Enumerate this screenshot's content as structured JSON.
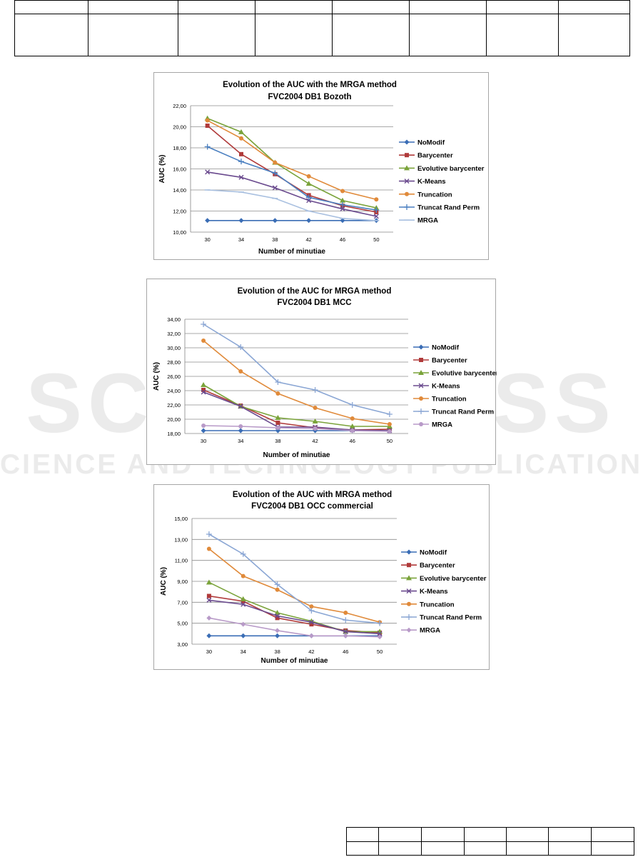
{
  "watermark": {
    "big": "SCITEPRESS",
    "small": "SCIENCE AND TECHNOLOGY PUBLICATIONS"
  },
  "chart_data": [
    {
      "type": "line",
      "title": "Evolution of the AUC with the MRGA method",
      "subtitle": "FVC2004 DB1 Bozoth",
      "xlabel": "Number of minutiae",
      "ylabel": "AUC (%)",
      "categories": [
        "30",
        "34",
        "38",
        "42",
        "46",
        "50"
      ],
      "yticks": [
        "10,00",
        "12,00",
        "14,00",
        "16,00",
        "18,00",
        "20,00",
        "22,00"
      ],
      "ylim": [
        10,
        22
      ],
      "grid": true,
      "legend": "right",
      "series": [
        {
          "name": "NoModif",
          "color": "#3a6db5",
          "marker": "diamond",
          "values": [
            11.1,
            11.1,
            11.1,
            11.1,
            11.1,
            11.1
          ]
        },
        {
          "name": "Barycenter",
          "color": "#b03a3a",
          "marker": "square",
          "values": [
            20.1,
            17.4,
            15.5,
            13.5,
            12.5,
            11.9
          ]
        },
        {
          "name": "Evolutive barycenter",
          "color": "#7aa33a",
          "marker": "triangle",
          "values": [
            20.8,
            19.5,
            16.6,
            14.6,
            13.0,
            12.3
          ]
        },
        {
          "name": "K-Means",
          "color": "#6a4a8e",
          "marker": "x",
          "values": [
            15.7,
            15.2,
            14.2,
            13.0,
            12.2,
            11.5
          ]
        },
        {
          "name": "Truncation",
          "color": "#e08a3a",
          "marker": "circle",
          "values": [
            20.6,
            18.9,
            16.6,
            15.3,
            13.9,
            13.1
          ]
        },
        {
          "name": "Truncat Rand Perm",
          "color": "#4a7fc0",
          "marker": "plus",
          "values": [
            18.1,
            16.7,
            15.6,
            13.3,
            12.6,
            12.1
          ]
        },
        {
          "name": "MRGA",
          "color": "#a9c0e0",
          "marker": "dash",
          "values": [
            14.0,
            13.8,
            13.2,
            12.0,
            11.3,
            11.1
          ]
        }
      ]
    },
    {
      "type": "line",
      "title": "Evolution of the AUC  for MRGA method",
      "subtitle": "FVC2004 DB1 MCC",
      "xlabel": "Number of minutiae",
      "ylabel": "AUC (%)",
      "categories": [
        "30",
        "34",
        "38",
        "42",
        "46",
        "50"
      ],
      "yticks": [
        "18,00",
        "20,00",
        "22,00",
        "24,00",
        "26,00",
        "28,00",
        "30,00",
        "32,00",
        "34,00"
      ],
      "ylim": [
        18,
        34
      ],
      "grid": true,
      "legend": "right",
      "series": [
        {
          "name": "NoModif",
          "color": "#3a6db5",
          "marker": "diamond",
          "values": [
            18.4,
            18.4,
            18.4,
            18.4,
            18.4,
            18.4
          ]
        },
        {
          "name": "Barycenter",
          "color": "#b03a3a",
          "marker": "square",
          "values": [
            24.1,
            21.9,
            19.5,
            18.8,
            18.5,
            18.6
          ]
        },
        {
          "name": "Evolutive barycenter",
          "color": "#7aa33a",
          "marker": "triangle",
          "values": [
            24.8,
            21.8,
            20.2,
            19.7,
            19.0,
            19.0
          ]
        },
        {
          "name": "K-Means",
          "color": "#6a4a8e",
          "marker": "x",
          "values": [
            23.8,
            21.8,
            18.9,
            18.9,
            18.5,
            18.4
          ]
        },
        {
          "name": "Truncation",
          "color": "#e08a3a",
          "marker": "circle",
          "values": [
            31.0,
            26.7,
            23.6,
            21.6,
            20.1,
            19.3
          ]
        },
        {
          "name": "Truncat Rand Perm",
          "color": "#8aa6d4",
          "marker": "plus",
          "values": [
            33.3,
            30.1,
            25.2,
            24.1,
            22.0,
            20.7
          ]
        },
        {
          "name": "MRGA",
          "color": "#b89ac8",
          "marker": "circle",
          "values": [
            19.1,
            19.0,
            18.8,
            18.7,
            18.4,
            18.3
          ]
        }
      ]
    },
    {
      "type": "line",
      "title": "Evolution of the AUC  with MRGA method",
      "subtitle": "FVC2004 DB1 OCC commercial",
      "xlabel": "Number of minutiae",
      "ylabel": "AUC (%)",
      "categories": [
        "30",
        "34",
        "38",
        "42",
        "46",
        "50"
      ],
      "yticks": [
        "3,00",
        "5,00",
        "7,00",
        "9,00",
        "11,00",
        "13,00",
        "15,00"
      ],
      "ylim": [
        3,
        15
      ],
      "grid": true,
      "legend": "right",
      "series": [
        {
          "name": "NoModif",
          "color": "#3a6db5",
          "marker": "diamond",
          "values": [
            3.8,
            3.8,
            3.8,
            3.8,
            3.8,
            3.8
          ]
        },
        {
          "name": "Barycenter",
          "color": "#b03a3a",
          "marker": "square",
          "values": [
            7.6,
            7.1,
            5.5,
            4.9,
            4.3,
            4.1
          ]
        },
        {
          "name": "Evolutive barycenter",
          "color": "#7aa33a",
          "marker": "triangle",
          "values": [
            8.9,
            7.3,
            6.0,
            5.2,
            4.2,
            4.2
          ]
        },
        {
          "name": "K-Means",
          "color": "#6a4a8e",
          "marker": "x",
          "values": [
            7.2,
            6.8,
            5.7,
            5.1,
            4.2,
            4.0
          ]
        },
        {
          "name": "Truncation",
          "color": "#e08a3a",
          "marker": "circle",
          "values": [
            12.1,
            9.5,
            8.2,
            6.6,
            6.0,
            5.1
          ]
        },
        {
          "name": "Truncat Rand Perm",
          "color": "#8aa6d4",
          "marker": "plus",
          "values": [
            13.5,
            11.6,
            8.7,
            6.2,
            5.3,
            5.0
          ]
        },
        {
          "name": "MRGA",
          "color": "#b89ac8",
          "marker": "diamond",
          "values": [
            5.5,
            4.9,
            4.3,
            3.8,
            3.8,
            3.7
          ]
        }
      ]
    }
  ]
}
